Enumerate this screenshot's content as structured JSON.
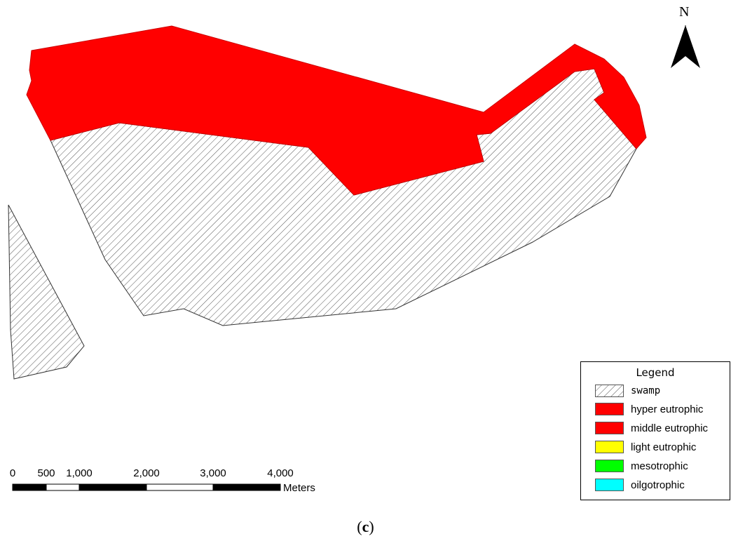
{
  "north_arrow": {
    "label": "N",
    "icon": "north-arrow-icon"
  },
  "legend": {
    "title": "Legend",
    "items": [
      {
        "label": "swamp",
        "fill": "hatch",
        "color": "#ffffff"
      },
      {
        "label": "hyper eutrophic",
        "fill": "solid",
        "color": "#ff0000"
      },
      {
        "label": "middle eutrophic",
        "fill": "solid",
        "color": "#ff0000"
      },
      {
        "label": "light eutrophic",
        "fill": "solid",
        "color": "#ffff00"
      },
      {
        "label": "mesotrophic",
        "fill": "solid",
        "color": "#00ff00"
      },
      {
        "label": "oilgotrophic",
        "fill": "solid",
        "color": "#00ffff"
      }
    ]
  },
  "scale_bar": {
    "ticks": [
      "0",
      "500",
      "1,000",
      "2,000",
      "3,000",
      "4,000"
    ],
    "units": "Meters"
  },
  "map": {
    "regions": [
      {
        "name": "swamp-region-main",
        "class": "swamp"
      },
      {
        "name": "swamp-region-west",
        "class": "swamp"
      },
      {
        "name": "hyper-eutrophic-region",
        "class": "hyper eutrophic"
      }
    ]
  },
  "caption": {
    "prefix": "(",
    "letter": "c",
    "suffix": ")"
  }
}
